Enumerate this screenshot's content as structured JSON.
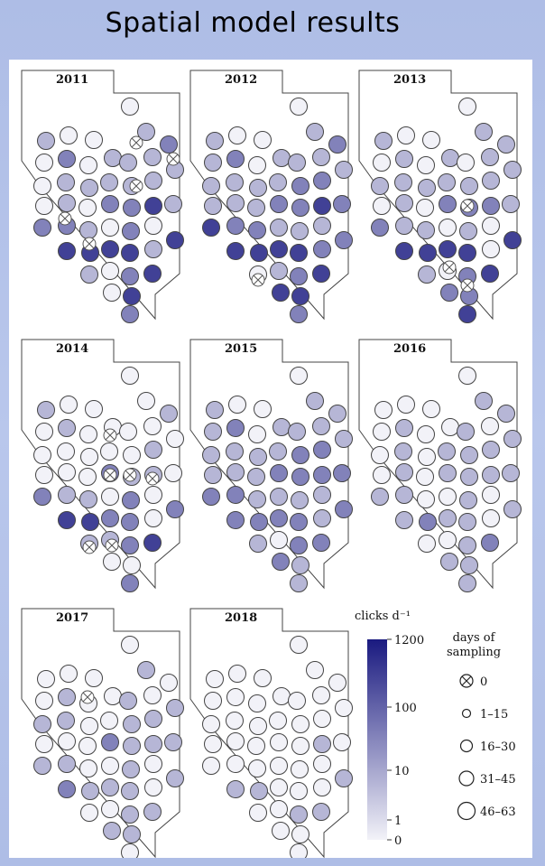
{
  "slide": {
    "title": "Spatial model results"
  },
  "colors": {
    "low": "#f2f2f8",
    "high": "#1a1a80",
    "outline": "#444444",
    "cross": "#555555"
  },
  "chart_data": {
    "type": "bubble-map",
    "panels": [
      {
        "year": "2011",
        "values": [
          0,
          1,
          0,
          0,
          1,
          2,
          0,
          2,
          0,
          1,
          1,
          1,
          1,
          0,
          1,
          1,
          1,
          1,
          1,
          1,
          0,
          1,
          0,
          2,
          2,
          3,
          2,
          2,
          1,
          0,
          2,
          0,
          3,
          3,
          3,
          3,
          3,
          1,
          1,
          0,
          2,
          3,
          0,
          3,
          2,
          3,
          0,
          2,
          3
        ]
      },
      {
        "year": "2012",
        "values": [
          0,
          1,
          0,
          0,
          1,
          2,
          1,
          2,
          0,
          1,
          1,
          1,
          1,
          1,
          1,
          1,
          1,
          2,
          2,
          2,
          1,
          1,
          1,
          2,
          2,
          3,
          3,
          2,
          2,
          1,
          1,
          1,
          2,
          3,
          3,
          3,
          3,
          2,
          0,
          1,
          2,
          3,
          3,
          3,
          2,
          2,
          0,
          2,
          2
        ]
      },
      {
        "year": "2013",
        "values": [
          0,
          1,
          0,
          0,
          1,
          1,
          0,
          1,
          0,
          1,
          0,
          1,
          1,
          1,
          1,
          1,
          1,
          1,
          1,
          1,
          0,
          1,
          0,
          2,
          2,
          2,
          2,
          1,
          1,
          0,
          1,
          0,
          3,
          3,
          3,
          3,
          3,
          0,
          1,
          0,
          2,
          3,
          2,
          2,
          3,
          1,
          0,
          2,
          2
        ]
      },
      {
        "year": "2014",
        "values": [
          0,
          1,
          0,
          0,
          0,
          1,
          0,
          1,
          0,
          0,
          0,
          0,
          0,
          0,
          0,
          0,
          0,
          0,
          1,
          0,
          0,
          0,
          0,
          2,
          1,
          1,
          2,
          1,
          1,
          0,
          2,
          0,
          2,
          3,
          3,
          2,
          2,
          0,
          1,
          1,
          2,
          3,
          0,
          0,
          2,
          0,
          2,
          2,
          1
        ]
      },
      {
        "year": "2015",
        "values": [
          0,
          1,
          0,
          0,
          1,
          1,
          1,
          2,
          0,
          1,
          1,
          1,
          1,
          1,
          1,
          1,
          1,
          2,
          2,
          2,
          1,
          1,
          1,
          2,
          2,
          2,
          2,
          2,
          1,
          1,
          1,
          1,
          2,
          2,
          2,
          2,
          2,
          1,
          1,
          0,
          2,
          2,
          2,
          1,
          1,
          1,
          0,
          1,
          1
        ]
      },
      {
        "year": "2016",
        "values": [
          0,
          0,
          0,
          0,
          1,
          1,
          0,
          1,
          0,
          0,
          1,
          0,
          1,
          0,
          1,
          0,
          1,
          1,
          1,
          1,
          0,
          1,
          0,
          1,
          1,
          1,
          1,
          1,
          0,
          0,
          1,
          0,
          1,
          1,
          2,
          1,
          1,
          0,
          0,
          0,
          1,
          2,
          1,
          1,
          1,
          0,
          0,
          1,
          1
        ]
      },
      {
        "year": "2017",
        "values": [
          0,
          0,
          0,
          0,
          1,
          0,
          0,
          1,
          0,
          0,
          1,
          0,
          1,
          1,
          1,
          0,
          0,
          1,
          1,
          1,
          0,
          0,
          0,
          2,
          1,
          1,
          1,
          1,
          0,
          0,
          1,
          0,
          1,
          2,
          1,
          1,
          1,
          0,
          0,
          0,
          1,
          1,
          1,
          1,
          0,
          0,
          0,
          1,
          0
        ]
      },
      {
        "year": "2018",
        "values": [
          0,
          0,
          0,
          0,
          0,
          0,
          0,
          0,
          0,
          0,
          0,
          0,
          0,
          0,
          0,
          0,
          0,
          0,
          0,
          0,
          0,
          0,
          0,
          0,
          0,
          1,
          0,
          0,
          0,
          0,
          0,
          0,
          1,
          1,
          1,
          0,
          0,
          0,
          0,
          0,
          1,
          1,
          0,
          0,
          0,
          0,
          0,
          0,
          0
        ]
      }
    ],
    "colorbar": {
      "label": "clicks d⁻¹",
      "ticks": [
        {
          "label": "1200",
          "value": 1200
        },
        {
          "label": "100",
          "value": 100
        },
        {
          "label": "10",
          "value": 10
        },
        {
          "label": "1",
          "value": 1
        },
        {
          "label": "0",
          "value": 0
        }
      ],
      "scale": "log"
    },
    "size_legend": {
      "title": [
        "days of",
        "sampling"
      ],
      "items": [
        {
          "label": "0",
          "crossed": true
        },
        {
          "label": "1–15",
          "crossed": false
        },
        {
          "label": "16–30",
          "crossed": false
        },
        {
          "label": "31–45",
          "crossed": false
        },
        {
          "label": "46–63",
          "crossed": false
        }
      ]
    }
  }
}
